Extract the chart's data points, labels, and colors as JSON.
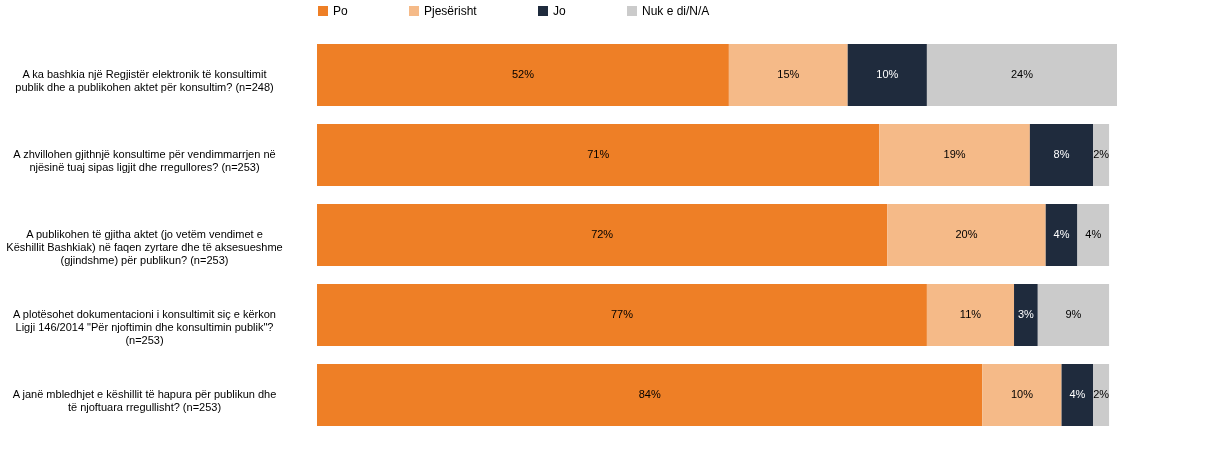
{
  "chart_data": {
    "type": "bar",
    "orientation": "horizontal",
    "stacked": true,
    "legend": "top",
    "grid": false,
    "categories": [
      "A ka bashkia një Regjistër elektronik të konsultimit publik dhe a publikohen aktet për konsultim? (n=248)",
      "A zhvillohen gjithnjë konsultime për vendimmarrjen në njësinë tuaj sipas ligjit dhe rregullores? (n=253)",
      "A publikohen të gjitha aktet (jo vetëm vendimet e Këshillit Bashkiak) në faqen zyrtare dhe të aksesueshme (gjindshme) për publikun? (n=253)",
      "A plotësohet dokumentacioni i konsultimit siç e kërkon Ligji 146/2014 \"Për njoftimin dhe konsultimin publik\"? (n=253)",
      "A janë mbledhjet e këshillit të hapura për publikun dhe të njoftuara rregullisht? (n=253)"
    ],
    "series": [
      {
        "name": "Po",
        "color": "#ee7f26",
        "values": [
          52,
          71,
          72,
          77,
          84
        ],
        "value_labels": [
          "52%",
          "71%",
          "72%",
          "77%",
          "84%"
        ]
      },
      {
        "name": "Pjesërisht",
        "color": "#f5ba88",
        "values": [
          15,
          19,
          20,
          11,
          10
        ],
        "value_labels": [
          "15%",
          "19%",
          "20%",
          "11%",
          "10%"
        ]
      },
      {
        "name": "Jo",
        "color": "#1f2b3d",
        "values": [
          10,
          8,
          4,
          3,
          4
        ],
        "value_labels": [
          "10%",
          "8%",
          "4%",
          "3%",
          "4%"
        ]
      },
      {
        "name": "Nuk e di/N/A",
        "color": "#cbcbcb",
        "values": [
          24,
          2,
          4,
          9,
          2
        ],
        "value_labels": [
          "24%",
          "2%",
          "4%",
          "9%",
          "2%"
        ]
      }
    ]
  }
}
